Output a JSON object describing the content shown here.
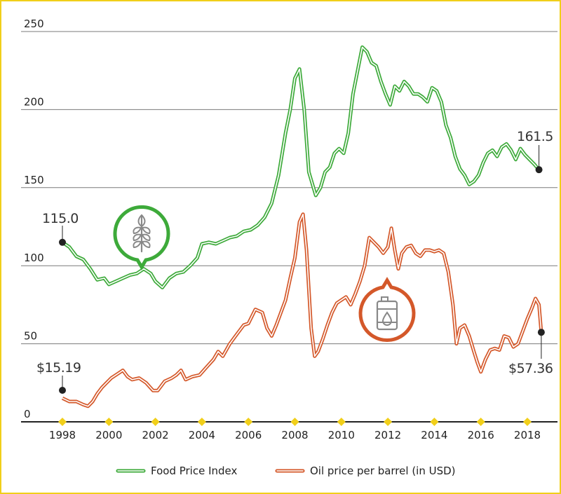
{
  "chart_data": {
    "type": "line",
    "title": "",
    "xlabel": "",
    "ylabel": "",
    "x_ticks": [
      "1998",
      "2000",
      "2002",
      "2004",
      "2006",
      "2008",
      "2010",
      "2012",
      "2014",
      "2016",
      "2018"
    ],
    "y_ticks": [
      "0",
      "50",
      "100",
      "150",
      "200",
      "250"
    ],
    "xlim": [
      1997.5,
      2018.9
    ],
    "ylim": [
      0,
      255
    ],
    "grid": "horizontal",
    "legend_position": "bottom",
    "icons": [
      "wheat-icon",
      "oil-barrel-icon"
    ],
    "series": [
      {
        "name": "Food Price Index",
        "color": "#3daa3a",
        "start_label": "115.0",
        "end_label": "161.5",
        "points": [
          [
            1998.0,
            115.0
          ],
          [
            1998.3,
            112
          ],
          [
            1998.6,
            106
          ],
          [
            1998.9,
            104
          ],
          [
            1999.2,
            98
          ],
          [
            1999.5,
            91
          ],
          [
            1999.8,
            92
          ],
          [
            2000.0,
            88
          ],
          [
            2000.3,
            90
          ],
          [
            2000.6,
            92
          ],
          [
            2000.9,
            94
          ],
          [
            2001.2,
            95
          ],
          [
            2001.5,
            98
          ],
          [
            2001.8,
            95
          ],
          [
            2002.0,
            90
          ],
          [
            2002.3,
            86
          ],
          [
            2002.6,
            92
          ],
          [
            2002.9,
            95
          ],
          [
            2003.2,
            96
          ],
          [
            2003.5,
            100
          ],
          [
            2003.8,
            105
          ],
          [
            2004.0,
            114
          ],
          [
            2004.3,
            115
          ],
          [
            2004.6,
            114
          ],
          [
            2004.9,
            116
          ],
          [
            2005.2,
            118
          ],
          [
            2005.5,
            119
          ],
          [
            2005.8,
            122
          ],
          [
            2006.1,
            123
          ],
          [
            2006.4,
            126
          ],
          [
            2006.7,
            131
          ],
          [
            2007.0,
            140
          ],
          [
            2007.3,
            158
          ],
          [
            2007.6,
            185
          ],
          [
            2007.8,
            200
          ],
          [
            2008.0,
            220
          ],
          [
            2008.2,
            226
          ],
          [
            2008.4,
            200
          ],
          [
            2008.6,
            160
          ],
          [
            2008.9,
            145
          ],
          [
            2009.1,
            150
          ],
          [
            2009.3,
            160
          ],
          [
            2009.5,
            163
          ],
          [
            2009.7,
            172
          ],
          [
            2009.9,
            175
          ],
          [
            2010.1,
            172
          ],
          [
            2010.3,
            185
          ],
          [
            2010.5,
            210
          ],
          [
            2010.7,
            225
          ],
          [
            2010.9,
            240
          ],
          [
            2011.1,
            237
          ],
          [
            2011.3,
            230
          ],
          [
            2011.5,
            228
          ],
          [
            2011.7,
            218
          ],
          [
            2011.9,
            210
          ],
          [
            2012.1,
            203
          ],
          [
            2012.3,
            215
          ],
          [
            2012.5,
            212
          ],
          [
            2012.7,
            218
          ],
          [
            2012.9,
            215
          ],
          [
            2013.1,
            210
          ],
          [
            2013.3,
            210
          ],
          [
            2013.5,
            208
          ],
          [
            2013.7,
            205
          ],
          [
            2013.9,
            214
          ],
          [
            2014.1,
            212
          ],
          [
            2014.3,
            205
          ],
          [
            2014.5,
            190
          ],
          [
            2014.7,
            182
          ],
          [
            2014.9,
            170
          ],
          [
            2015.1,
            162
          ],
          [
            2015.3,
            158
          ],
          [
            2015.5,
            152
          ],
          [
            2015.7,
            154
          ],
          [
            2015.9,
            158
          ],
          [
            2016.1,
            166
          ],
          [
            2016.3,
            172
          ],
          [
            2016.5,
            174
          ],
          [
            2016.7,
            170
          ],
          [
            2016.9,
            176
          ],
          [
            2017.1,
            178
          ],
          [
            2017.3,
            174
          ],
          [
            2017.5,
            168
          ],
          [
            2017.7,
            175
          ],
          [
            2017.9,
            171
          ],
          [
            2018.1,
            168
          ],
          [
            2018.3,
            165
          ],
          [
            2018.5,
            161.5
          ]
        ]
      },
      {
        "name": "Oil price per barrel (in USD)",
        "color": "#d4582a",
        "start_label": "$15.19",
        "end_label": "$57.36",
        "points": [
          [
            1998.0,
            15.19
          ],
          [
            1998.3,
            13
          ],
          [
            1998.6,
            13
          ],
          [
            1998.9,
            11
          ],
          [
            1999.1,
            10
          ],
          [
            1999.3,
            13
          ],
          [
            1999.5,
            18
          ],
          [
            1999.7,
            22
          ],
          [
            1999.9,
            25
          ],
          [
            2000.1,
            28
          ],
          [
            2000.4,
            31
          ],
          [
            2000.6,
            33
          ],
          [
            2000.8,
            29
          ],
          [
            2001.0,
            27
          ],
          [
            2001.3,
            28
          ],
          [
            2001.6,
            25
          ],
          [
            2001.9,
            20
          ],
          [
            2002.1,
            20
          ],
          [
            2002.4,
            26
          ],
          [
            2002.7,
            28
          ],
          [
            2002.9,
            30
          ],
          [
            2003.1,
            33
          ],
          [
            2003.3,
            27
          ],
          [
            2003.6,
            29
          ],
          [
            2003.9,
            30
          ],
          [
            2004.2,
            35
          ],
          [
            2004.5,
            40
          ],
          [
            2004.7,
            45
          ],
          [
            2004.9,
            42
          ],
          [
            2005.2,
            50
          ],
          [
            2005.5,
            56
          ],
          [
            2005.8,
            62
          ],
          [
            2006.0,
            63
          ],
          [
            2006.3,
            72
          ],
          [
            2006.6,
            70
          ],
          [
            2006.8,
            60
          ],
          [
            2007.0,
            55
          ],
          [
            2007.2,
            62
          ],
          [
            2007.4,
            70
          ],
          [
            2007.6,
            78
          ],
          [
            2007.8,
            92
          ],
          [
            2008.0,
            105
          ],
          [
            2008.2,
            128
          ],
          [
            2008.35,
            133
          ],
          [
            2008.5,
            110
          ],
          [
            2008.7,
            60
          ],
          [
            2008.85,
            42
          ],
          [
            2009.0,
            45
          ],
          [
            2009.2,
            53
          ],
          [
            2009.4,
            62
          ],
          [
            2009.6,
            70
          ],
          [
            2009.8,
            76
          ],
          [
            2010.0,
            78
          ],
          [
            2010.2,
            80
          ],
          [
            2010.4,
            75
          ],
          [
            2010.6,
            82
          ],
          [
            2010.8,
            90
          ],
          [
            2011.0,
            100
          ],
          [
            2011.2,
            118
          ],
          [
            2011.4,
            115
          ],
          [
            2011.6,
            112
          ],
          [
            2011.8,
            108
          ],
          [
            2012.0,
            112
          ],
          [
            2012.15,
            124
          ],
          [
            2012.3,
            110
          ],
          [
            2012.45,
            98
          ],
          [
            2012.6,
            108
          ],
          [
            2012.8,
            112
          ],
          [
            2013.0,
            113
          ],
          [
            2013.2,
            108
          ],
          [
            2013.4,
            106
          ],
          [
            2013.6,
            110
          ],
          [
            2013.8,
            110
          ],
          [
            2014.0,
            109
          ],
          [
            2014.2,
            110
          ],
          [
            2014.4,
            108
          ],
          [
            2014.6,
            96
          ],
          [
            2014.8,
            75
          ],
          [
            2014.95,
            50
          ],
          [
            2015.1,
            60
          ],
          [
            2015.3,
            62
          ],
          [
            2015.5,
            55
          ],
          [
            2015.7,
            45
          ],
          [
            2015.85,
            38
          ],
          [
            2016.0,
            32
          ],
          [
            2016.2,
            40
          ],
          [
            2016.4,
            46
          ],
          [
            2016.6,
            47
          ],
          [
            2016.8,
            46
          ],
          [
            2017.0,
            55
          ],
          [
            2017.2,
            54
          ],
          [
            2017.4,
            48
          ],
          [
            2017.6,
            50
          ],
          [
            2017.8,
            58
          ],
          [
            2018.0,
            66
          ],
          [
            2018.2,
            73
          ],
          [
            2018.35,
            79
          ],
          [
            2018.5,
            75
          ],
          [
            2018.6,
            57.36
          ]
        ]
      }
    ]
  }
}
